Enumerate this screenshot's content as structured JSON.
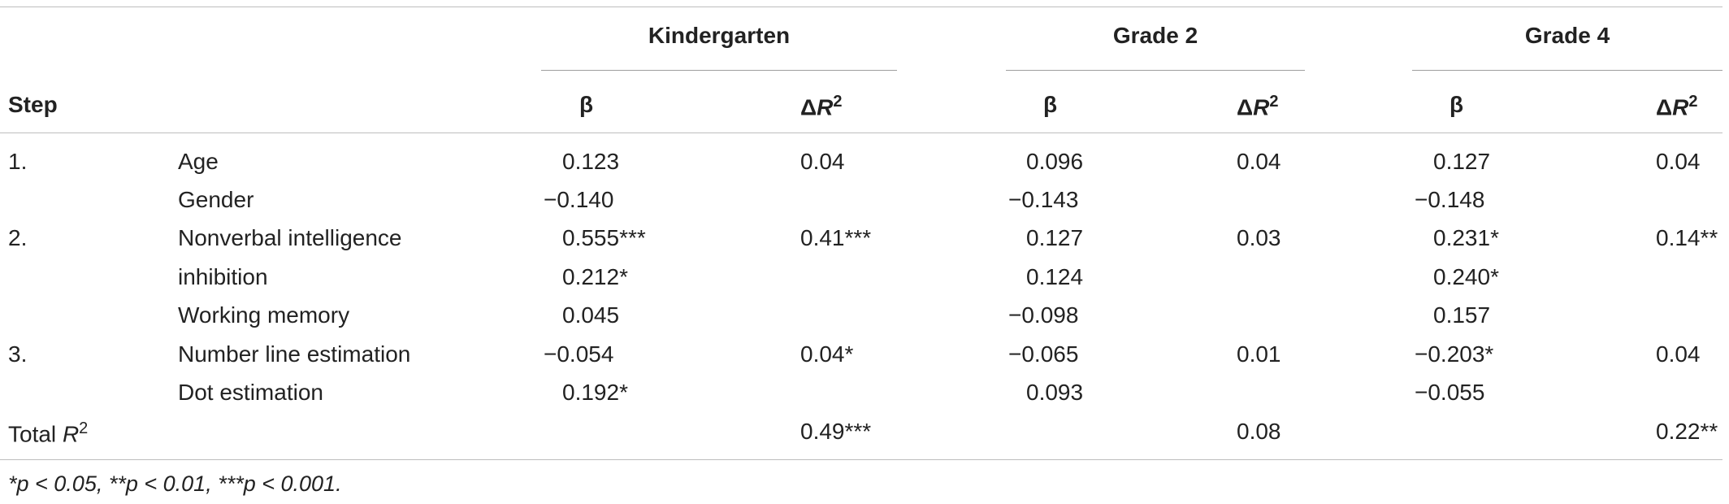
{
  "header": {
    "groups": [
      "Kindergarten",
      "Grade 2",
      "Grade 4"
    ],
    "step_label": "Step",
    "beta_label": "β",
    "dr2_delta": "Δ",
    "dr2_R": "R",
    "dr2_sup": "2"
  },
  "rows": [
    {
      "step": "1.",
      "label": "Age",
      "k_beta": "0.123",
      "k_dr2": "0.04",
      "g2_beta": "0.096",
      "g2_dr2": "0.04",
      "g4_beta": "0.127",
      "g4_dr2": "0.04"
    },
    {
      "step": "",
      "label": "Gender",
      "k_beta": "−0.140",
      "k_dr2": "",
      "g2_beta": "−0.143",
      "g2_dr2": "",
      "g4_beta": "−0.148",
      "g4_dr2": ""
    },
    {
      "step": "2.",
      "label": "Nonverbal intelligence",
      "k_beta": "0.555***",
      "k_dr2": "0.41***",
      "g2_beta": "0.127",
      "g2_dr2": "0.03",
      "g4_beta": "0.231*",
      "g4_dr2": "0.14**"
    },
    {
      "step": "",
      "label": "inhibition",
      "k_beta": "0.212*",
      "k_dr2": "",
      "g2_beta": "0.124",
      "g2_dr2": "",
      "g4_beta": "0.240*",
      "g4_dr2": ""
    },
    {
      "step": "",
      "label": "Working memory",
      "k_beta": "0.045",
      "k_dr2": "",
      "g2_beta": "−0.098",
      "g2_dr2": "",
      "g4_beta": "0.157",
      "g4_dr2": ""
    },
    {
      "step": "3.",
      "label": "Number line estimation",
      "k_beta": "−0.054",
      "k_dr2": "0.04*",
      "g2_beta": "−0.065",
      "g2_dr2": "0.01",
      "g4_beta": "−0.203*",
      "g4_dr2": "0.04"
    },
    {
      "step": "",
      "label": "Dot estimation",
      "k_beta": "0.192*",
      "k_dr2": "",
      "g2_beta": "0.093",
      "g2_dr2": "",
      "g4_beta": "−0.055",
      "g4_dr2": ""
    }
  ],
  "total": {
    "label_text": "Total ",
    "label_R": "R",
    "label_sup": "2",
    "k": "0.49***",
    "g2": "0.08",
    "g4": "0.22**"
  },
  "footnote": "*p < 0.05, **p < 0.01, ***p < 0.001."
}
